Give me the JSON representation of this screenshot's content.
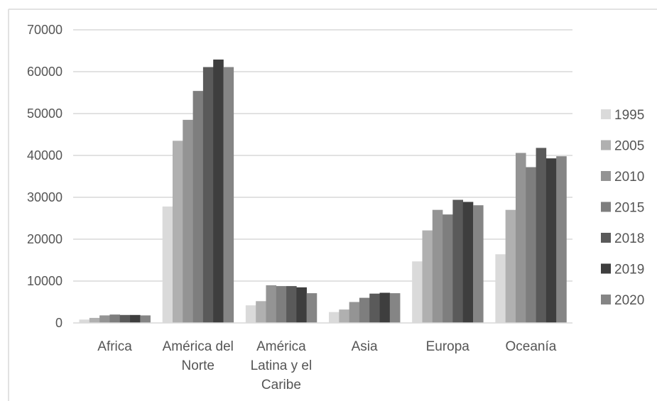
{
  "chart_data": {
    "type": "bar",
    "categories": [
      [
        "Africa"
      ],
      [
        "América del",
        "Norte"
      ],
      [
        "América",
        "Latina y el",
        "Caribe"
      ],
      [
        "Asia"
      ],
      [
        "Europa"
      ],
      [
        "Oceanía"
      ]
    ],
    "series": [
      {
        "name": "1995",
        "color": "#dadada",
        "values": [
          800,
          27800,
          4200,
          2600,
          14700,
          16400
        ]
      },
      {
        "name": "2005",
        "color": "#b0b0b0",
        "values": [
          1200,
          43500,
          5200,
          3200,
          22100,
          27000
        ]
      },
      {
        "name": "2010",
        "color": "#949494",
        "values": [
          1800,
          48500,
          9000,
          5000,
          27000,
          40600
        ]
      },
      {
        "name": "2015",
        "color": "#7e7e7e",
        "values": [
          2000,
          55400,
          8800,
          6000,
          25900,
          37200
        ]
      },
      {
        "name": "2018",
        "color": "#5a5a5a",
        "values": [
          1900,
          61100,
          8800,
          7000,
          29400,
          41800
        ]
      },
      {
        "name": "2019",
        "color": "#3e3e3e",
        "values": [
          1900,
          62900,
          8500,
          7200,
          28900,
          39300
        ]
      },
      {
        "name": "2020",
        "color": "#858585",
        "values": [
          1800,
          61100,
          7100,
          7100,
          28100,
          39800
        ]
      }
    ],
    "y_ticks": [
      "0",
      "10000",
      "20000",
      "30000",
      "40000",
      "50000",
      "60000",
      "70000"
    ],
    "ylim": [
      0,
      70000
    ],
    "grid": true,
    "legend_position": "right",
    "title": "",
    "xlabel": "",
    "ylabel": ""
  }
}
